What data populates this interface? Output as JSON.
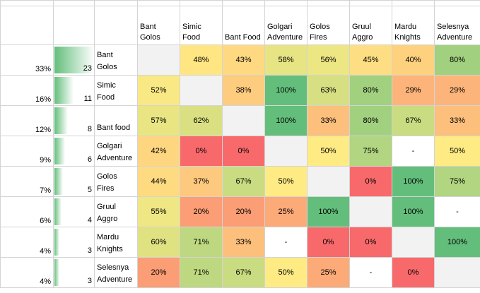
{
  "headers": [
    "Bant Golos",
    "Simic Food",
    "Bant Food",
    "Golgari Adventure",
    "Golos Fires",
    "Gruul Aggro",
    "Mardu Knights",
    "Selesnya Adventure"
  ],
  "rows": [
    {
      "percent": "33%",
      "count": 23,
      "name": "Bant Golos",
      "cells": [
        null,
        "48%",
        "43%",
        "58%",
        "56%",
        "45%",
        "40%",
        "80%"
      ]
    },
    {
      "percent": "16%",
      "count": 11,
      "name": "Simic Food",
      "cells": [
        "52%",
        null,
        "38%",
        "100%",
        "63%",
        "80%",
        "29%",
        "29%"
      ]
    },
    {
      "percent": "12%",
      "count": 8,
      "name": "Bant food",
      "cells": [
        "57%",
        "62%",
        null,
        "100%",
        "33%",
        "80%",
        "67%",
        "33%"
      ]
    },
    {
      "percent": "9%",
      "count": 6,
      "name": "Golgari Adventure",
      "cells": [
        "42%",
        "0%",
        "0%",
        null,
        "50%",
        "75%",
        "-",
        "50%"
      ]
    },
    {
      "percent": "7%",
      "count": 5,
      "name": "Golos Fires",
      "cells": [
        "44%",
        "37%",
        "67%",
        "50%",
        null,
        "0%",
        "100%",
        "75%"
      ]
    },
    {
      "percent": "6%",
      "count": 4,
      "name": "Gruul Aggro",
      "cells": [
        "55%",
        "20%",
        "20%",
        "25%",
        "100%",
        null,
        "100%",
        "-"
      ]
    },
    {
      "percent": "4%",
      "count": 3,
      "name": "Mardu Knights",
      "cells": [
        "60%",
        "71%",
        "33%",
        "-",
        "0%",
        "0%",
        null,
        "100%"
      ]
    },
    {
      "percent": "4%",
      "count": 3,
      "name": "Selesnya Adventure",
      "cells": [
        "20%",
        "71%",
        "67%",
        "50%",
        "25%",
        "-",
        "0%",
        null
      ]
    }
  ],
  "color_scale": [
    {
      "at": 0,
      "color": "#f8696b"
    },
    {
      "at": 50,
      "color": "#ffeb84"
    },
    {
      "at": 100,
      "color": "#63be7b"
    }
  ],
  "data_bar_color": "#63be7b",
  "empty_cell_color": "#f2f2f2"
}
